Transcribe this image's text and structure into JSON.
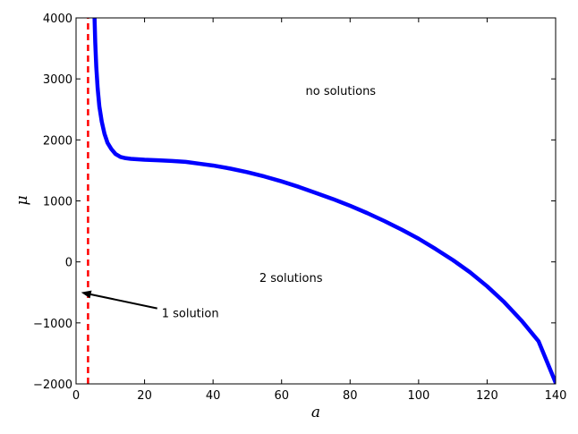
{
  "chart_data": {
    "type": "line",
    "title": "",
    "xlabel": "a",
    "ylabel": "μ",
    "xlim": [
      0,
      140
    ],
    "ylim": [
      -2000,
      4000
    ],
    "grid": false,
    "x_ticks": [
      0,
      20,
      40,
      60,
      80,
      100,
      120,
      140
    ],
    "y_ticks": [
      -2000,
      -1000,
      0,
      1000,
      2000,
      3000,
      4000
    ],
    "x_tick_labels": [
      "0",
      "20",
      "40",
      "60",
      "80",
      "100",
      "120",
      "140"
    ],
    "y_tick_labels": [
      "−2000",
      "−1000",
      "0",
      "1000",
      "2000",
      "3000",
      "4000"
    ],
    "series": [
      {
        "style": "solid",
        "color": "#0000ff",
        "x": [
          5.4,
          5.6,
          5.9,
          6.3,
          6.8,
          7.5,
          8.3,
          9.2,
          10.3,
          11.5,
          13.0,
          14.5,
          16.0,
          20,
          24,
          28,
          32,
          36,
          40,
          45,
          50,
          55,
          60,
          65,
          70,
          75,
          80,
          85,
          90,
          95,
          100,
          105,
          110,
          115,
          120,
          125,
          130,
          135,
          140
        ],
        "y": [
          4000,
          3600,
          3200,
          2850,
          2550,
          2300,
          2100,
          1950,
          1850,
          1770,
          1720,
          1700,
          1690,
          1675,
          1665,
          1655,
          1640,
          1610,
          1580,
          1530,
          1470,
          1400,
          1320,
          1230,
          1130,
          1030,
          920,
          800,
          670,
          530,
          380,
          210,
          30,
          -170,
          -400,
          -660,
          -960,
          -1300,
          -1980
        ]
      },
      {
        "style": "dashed",
        "color": "#ff0000",
        "x": [
          3.5,
          3.5
        ],
        "y": [
          -2000,
          4000
        ]
      }
    ],
    "annotations": [
      {
        "text": "no solutions",
        "x": 67,
        "y": 2800
      },
      {
        "text": "2 solutions",
        "x": 53.5,
        "y": -270
      },
      {
        "text": "1 solution",
        "x": 25,
        "y": -850,
        "arrow_to": [
          1.5,
          -500
        ]
      }
    ]
  }
}
